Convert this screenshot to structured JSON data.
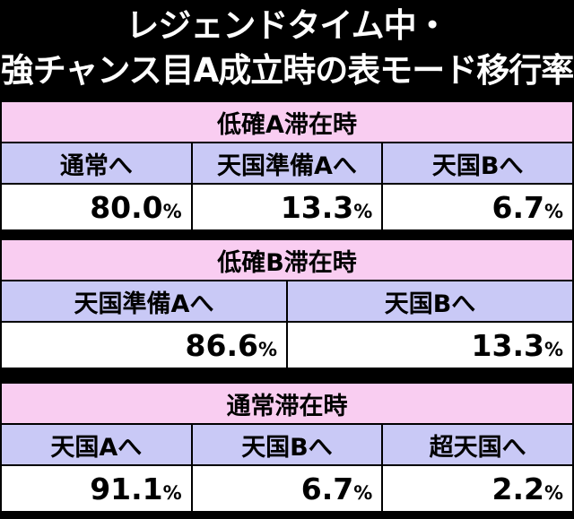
{
  "title": {
    "line1": "レジェンドタイム中・",
    "line2": "強チャンス目A成立時の表モード移行率"
  },
  "sections": [
    {
      "header": "低確A滞在時",
      "columns": [
        "通常へ",
        "天国準備Aへ",
        "天国Bへ"
      ],
      "values": [
        "80.0",
        "13.3",
        "6.7"
      ]
    },
    {
      "header": "低確B滞在時",
      "columns": [
        "天国準備Aへ",
        "天国Bへ"
      ],
      "values": [
        "86.6",
        "13.3"
      ]
    },
    {
      "header": "通常滞在時",
      "columns": [
        "天国Aへ",
        "天国Bへ",
        "超天国へ"
      ],
      "values": [
        "91.1",
        "6.7",
        "2.2"
      ]
    }
  ],
  "percent_sign": "%"
}
